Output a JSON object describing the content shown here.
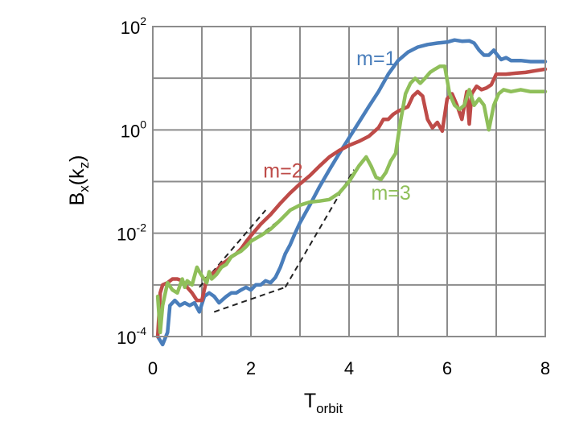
{
  "chart_data": {
    "type": "line",
    "title": "",
    "xlabel": {
      "base": "T",
      "sub": "orbit"
    },
    "ylabel": {
      "base": "B",
      "sub": "x",
      "suffix_open": "(k",
      "suffix_sub": "z",
      "suffix_close": ")"
    },
    "xlim": [
      0,
      8
    ],
    "ylim": [
      0.0001,
      100
    ],
    "yscale": "log",
    "grid": true,
    "x_ticks": [
      {
        "value": 0,
        "label": "0"
      },
      {
        "value": 2,
        "label": "2"
      },
      {
        "value": 4,
        "label": "4"
      },
      {
        "value": 6,
        "label": "6"
      },
      {
        "value": 8,
        "label": "8"
      }
    ],
    "y_ticks": [
      {
        "value": 0.0001,
        "base": "10",
        "exp": "-4"
      },
      {
        "value": 0.01,
        "base": "10",
        "exp": "-2"
      },
      {
        "value": 1,
        "base": "10",
        "exp": "0"
      },
      {
        "value": 100,
        "base": "10",
        "exp": "2"
      }
    ],
    "series": [
      {
        "name": "m=1",
        "color": "#4a7ebb",
        "label_anchor": [
          4.15,
          18
        ],
        "points": [
          [
            0.1,
            0.0001
          ],
          [
            0.2,
            7e-05
          ],
          [
            0.3,
            0.00012
          ],
          [
            0.35,
            0.0004
          ],
          [
            0.45,
            0.0005
          ],
          [
            0.55,
            0.0004
          ],
          [
            0.65,
            0.00045
          ],
          [
            0.75,
            0.0004
          ],
          [
            0.85,
            0.00045
          ],
          [
            0.95,
            0.0003
          ],
          [
            1.05,
            0.0006
          ],
          [
            1.15,
            0.0007
          ],
          [
            1.25,
            0.0006
          ],
          [
            1.35,
            0.00045
          ],
          [
            1.5,
            0.0006
          ],
          [
            1.6,
            0.0007
          ],
          [
            1.7,
            0.0007
          ],
          [
            1.8,
            0.0008
          ],
          [
            1.9,
            0.0009
          ],
          [
            2.0,
            0.0008
          ],
          [
            2.1,
            0.001
          ],
          [
            2.2,
            0.001
          ],
          [
            2.3,
            0.0012
          ],
          [
            2.4,
            0.0011
          ],
          [
            2.5,
            0.0014
          ],
          [
            2.6,
            0.0022
          ],
          [
            2.7,
            0.004
          ],
          [
            2.8,
            0.006
          ],
          [
            2.9,
            0.01
          ],
          [
            3.0,
            0.016
          ],
          [
            3.2,
            0.035
          ],
          [
            3.4,
            0.08
          ],
          [
            3.6,
            0.17
          ],
          [
            3.8,
            0.35
          ],
          [
            4.0,
            0.7
          ],
          [
            4.2,
            1.4
          ],
          [
            4.4,
            2.8
          ],
          [
            4.6,
            5.5
          ],
          [
            4.8,
            12
          ],
          [
            5.0,
            22
          ],
          [
            5.2,
            32
          ],
          [
            5.4,
            40
          ],
          [
            5.6,
            45
          ],
          [
            5.8,
            48
          ],
          [
            6.0,
            50
          ],
          [
            6.15,
            55
          ],
          [
            6.3,
            52
          ],
          [
            6.45,
            53
          ],
          [
            6.55,
            48
          ],
          [
            6.65,
            35
          ],
          [
            6.75,
            28
          ],
          [
            6.85,
            28
          ],
          [
            6.95,
            35
          ],
          [
            7.0,
            30
          ],
          [
            7.1,
            23
          ],
          [
            7.2,
            25
          ],
          [
            7.3,
            22
          ],
          [
            7.5,
            22
          ],
          [
            7.7,
            21
          ],
          [
            8.0,
            21
          ]
        ]
      },
      {
        "name": "m=2",
        "color": "#be4b48",
        "label_anchor": [
          2.25,
          0.12
        ],
        "points": [
          [
            0.1,
            0.0001
          ],
          [
            0.15,
            0.0007
          ],
          [
            0.2,
            0.001
          ],
          [
            0.3,
            0.0011
          ],
          [
            0.4,
            0.0013
          ],
          [
            0.5,
            0.0013
          ],
          [
            0.6,
            0.0012
          ],
          [
            0.7,
            0.0009
          ],
          [
            0.8,
            0.0007
          ],
          [
            0.9,
            0.0005
          ],
          [
            1.0,
            0.0005
          ],
          [
            1.1,
            0.0013
          ],
          [
            1.2,
            0.0016
          ],
          [
            1.3,
            0.0019
          ],
          [
            1.4,
            0.0025
          ],
          [
            1.5,
            0.0029
          ],
          [
            1.6,
            0.0035
          ],
          [
            1.7,
            0.004
          ],
          [
            1.8,
            0.005
          ],
          [
            1.9,
            0.0068
          ],
          [
            2.0,
            0.009
          ],
          [
            2.2,
            0.015
          ],
          [
            2.4,
            0.023
          ],
          [
            2.6,
            0.038
          ],
          [
            2.8,
            0.06
          ],
          [
            3.0,
            0.09
          ],
          [
            3.2,
            0.13
          ],
          [
            3.4,
            0.2
          ],
          [
            3.6,
            0.3
          ],
          [
            3.8,
            0.4
          ],
          [
            4.0,
            0.5
          ],
          [
            4.2,
            0.6
          ],
          [
            4.4,
            0.75
          ],
          [
            4.6,
            1.1
          ],
          [
            4.7,
            1.6
          ],
          [
            4.8,
            1.6
          ],
          [
            4.9,
            2.0
          ],
          [
            5.0,
            2.3
          ],
          [
            5.2,
            2.8
          ],
          [
            5.3,
            4.5
          ],
          [
            5.4,
            5.5
          ],
          [
            5.5,
            4.5
          ],
          [
            5.6,
            1.6
          ],
          [
            5.7,
            1.1
          ],
          [
            5.8,
            1.4
          ],
          [
            5.9,
            0.95
          ],
          [
            6.0,
            4.0
          ],
          [
            6.1,
            5.0
          ],
          [
            6.2,
            3.0
          ],
          [
            6.3,
            1.6
          ],
          [
            6.4,
            5.5
          ],
          [
            6.45,
            1.3
          ],
          [
            6.5,
            5.0
          ],
          [
            6.6,
            7.0
          ],
          [
            6.7,
            6.0
          ],
          [
            6.8,
            6.5
          ],
          [
            6.9,
            7.5
          ],
          [
            7.0,
            12
          ],
          [
            7.2,
            12
          ],
          [
            7.4,
            12.5
          ],
          [
            7.6,
            13
          ],
          [
            7.8,
            14
          ],
          [
            8.0,
            15
          ]
        ]
      },
      {
        "name": "m=3",
        "color": "#8fbf5a",
        "label_anchor": [
          4.45,
          0.045
        ],
        "points": [
          [
            0.1,
            0.0006
          ],
          [
            0.15,
            0.00012
          ],
          [
            0.2,
            0.0004
          ],
          [
            0.3,
            0.0011
          ],
          [
            0.4,
            0.0008
          ],
          [
            0.5,
            0.0007
          ],
          [
            0.6,
            0.0013
          ],
          [
            0.65,
            0.0009
          ],
          [
            0.7,
            0.0012
          ],
          [
            0.8,
            0.001
          ],
          [
            0.9,
            0.0022
          ],
          [
            0.95,
            0.0018
          ],
          [
            1.0,
            0.0015
          ],
          [
            1.1,
            0.0011
          ],
          [
            1.15,
            0.0018
          ],
          [
            1.2,
            0.0013
          ],
          [
            1.3,
            0.0016
          ],
          [
            1.4,
            0.0022
          ],
          [
            1.5,
            0.0025
          ],
          [
            1.6,
            0.0035
          ],
          [
            1.7,
            0.004
          ],
          [
            1.8,
            0.0045
          ],
          [
            1.9,
            0.0055
          ],
          [
            2.0,
            0.007
          ],
          [
            2.2,
            0.009
          ],
          [
            2.4,
            0.012
          ],
          [
            2.6,
            0.018
          ],
          [
            2.8,
            0.028
          ],
          [
            3.0,
            0.035
          ],
          [
            3.2,
            0.04
          ],
          [
            3.4,
            0.042
          ],
          [
            3.6,
            0.045
          ],
          [
            3.8,
            0.06
          ],
          [
            4.0,
            0.1
          ],
          [
            4.2,
            0.2
          ],
          [
            4.35,
            0.3
          ],
          [
            4.45,
            0.2
          ],
          [
            4.55,
            0.12
          ],
          [
            4.65,
            0.11
          ],
          [
            4.75,
            0.15
          ],
          [
            4.85,
            0.25
          ],
          [
            4.95,
            0.35
          ],
          [
            5.05,
            1.5
          ],
          [
            5.15,
            5.0
          ],
          [
            5.25,
            8.0
          ],
          [
            5.35,
            10
          ],
          [
            5.45,
            8.0
          ],
          [
            5.55,
            10
          ],
          [
            5.65,
            13
          ],
          [
            5.75,
            15
          ],
          [
            5.85,
            17
          ],
          [
            5.95,
            17
          ],
          [
            6.05,
            5.0
          ],
          [
            6.15,
            3.0
          ],
          [
            6.25,
            2.5
          ],
          [
            6.35,
            3.0
          ],
          [
            6.45,
            6.0
          ],
          [
            6.55,
            3.0
          ],
          [
            6.65,
            4.0
          ],
          [
            6.75,
            3.0
          ],
          [
            6.85,
            1.0
          ],
          [
            6.95,
            3.0
          ],
          [
            7.05,
            5.0
          ],
          [
            7.15,
            6.0
          ],
          [
            7.3,
            5.5
          ],
          [
            7.5,
            6.0
          ],
          [
            7.7,
            5.5
          ],
          [
            8.0,
            5.5
          ]
        ]
      }
    ],
    "guide_lines": [
      {
        "style": "dashed",
        "color": "#222222",
        "from": [
          0.95,
          0.0009
        ],
        "to": [
          2.3,
          0.028
        ]
      },
      {
        "style": "dashed",
        "color": "#222222",
        "from": [
          1.05,
          0.0013
        ],
        "to": [
          2.7,
          0.022
        ]
      },
      {
        "style": "dashed",
        "color": "#222222",
        "from": [
          1.25,
          0.0003
        ],
        "to": [
          2.7,
          0.0009
        ]
      },
      {
        "style": "dashed",
        "color": "#222222",
        "from": [
          2.7,
          0.0009
        ],
        "to": [
          4.1,
          0.17
        ]
      }
    ]
  }
}
